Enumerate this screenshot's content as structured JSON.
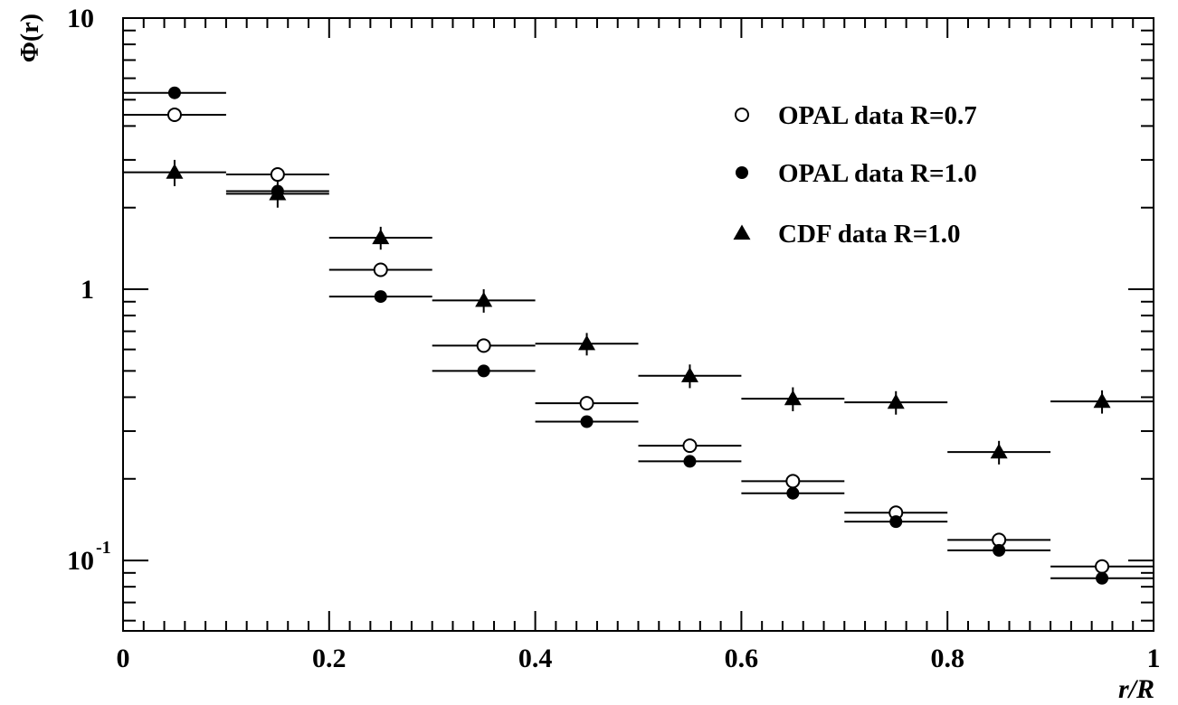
{
  "chart_data": {
    "type": "scatter",
    "xlabel": "r/R",
    "ylabel": "Φ(r)",
    "xlim": [
      0,
      1
    ],
    "ylim": [
      0.055,
      10
    ],
    "yscale": "log",
    "xticks": [
      {
        "value": 0,
        "label": "0"
      },
      {
        "value": 0.2,
        "label": "0.2"
      },
      {
        "value": 0.4,
        "label": "0.4"
      },
      {
        "value": 0.6,
        "label": "0.6"
      },
      {
        "value": 0.8,
        "label": "0.8"
      },
      {
        "value": 1,
        "label": "1"
      }
    ],
    "yticks": [
      {
        "value": 10,
        "base": "10",
        "exponent": ""
      },
      {
        "value": 1,
        "base": "1",
        "exponent": ""
      },
      {
        "value": 0.1,
        "base": "10",
        "exponent": "-1"
      }
    ],
    "grid": false,
    "legend_position": "top-right",
    "bin_half_width": 0.05,
    "series": [
      {
        "name": "OPAL data R=0.7",
        "marker": "open-circle",
        "x": [
          0.05,
          0.15,
          0.25,
          0.35,
          0.45,
          0.55,
          0.65,
          0.75,
          0.85,
          0.95
        ],
        "y": [
          4.4,
          2.65,
          1.18,
          0.62,
          0.38,
          0.265,
          0.196,
          0.15,
          0.119,
          0.095
        ],
        "yerr": [
          0.05,
          0.04,
          0.02,
          0.01,
          0.006,
          0.004,
          0.003,
          0.002,
          0.002,
          0.004
        ]
      },
      {
        "name": "OPAL data R=1.0",
        "marker": "filled-circle",
        "x": [
          0.05,
          0.15,
          0.25,
          0.35,
          0.45,
          0.55,
          0.65,
          0.75,
          0.85,
          0.95
        ],
        "y": [
          5.3,
          2.3,
          0.94,
          0.5,
          0.325,
          0.232,
          0.177,
          0.139,
          0.109,
          0.086
        ],
        "yerr": [
          0.05,
          0.04,
          0.02,
          0.01,
          0.006,
          0.004,
          0.003,
          0.002,
          0.002,
          0.002
        ]
      },
      {
        "name": "CDF data R=1.0",
        "marker": "filled-triangle",
        "x": [
          0.05,
          0.15,
          0.25,
          0.35,
          0.45,
          0.55,
          0.65,
          0.75,
          0.85,
          0.95
        ],
        "y": [
          2.7,
          2.25,
          1.55,
          0.91,
          0.63,
          0.48,
          0.395,
          0.383,
          0.251,
          0.386
        ],
        "yerr": [
          0.3,
          0.25,
          0.15,
          0.09,
          0.06,
          0.048,
          0.04,
          0.038,
          0.025,
          0.038
        ]
      }
    ]
  }
}
